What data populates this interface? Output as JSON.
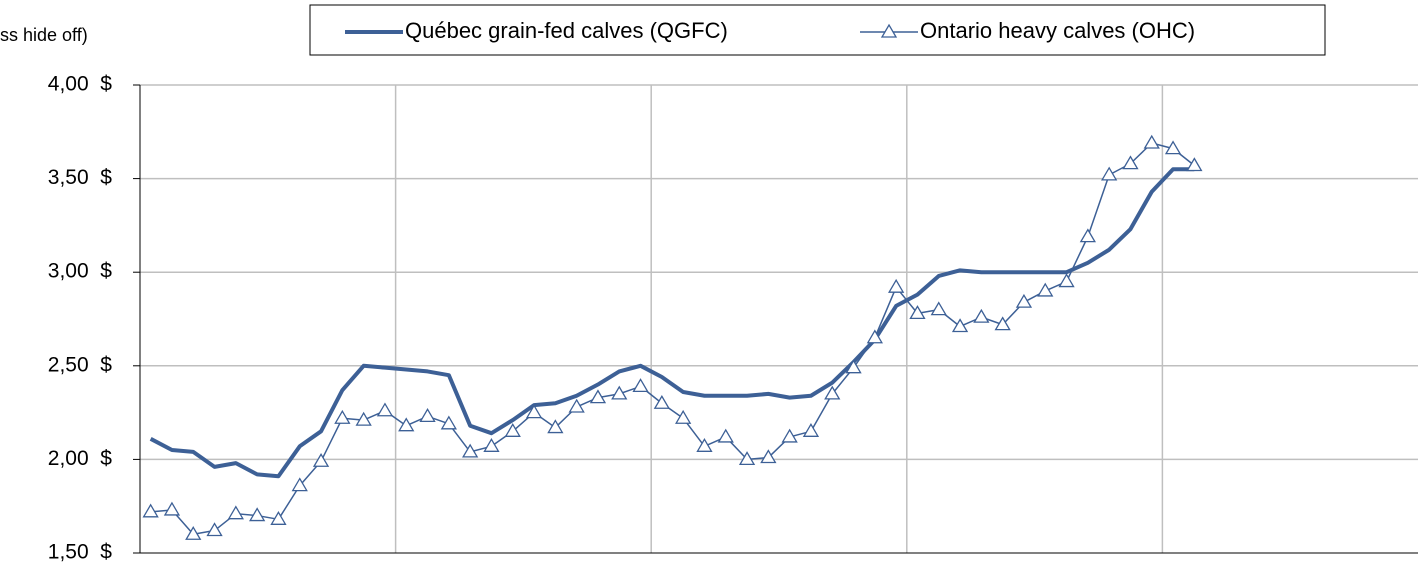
{
  "chart_data": {
    "type": "line",
    "y_axis_label": "ss hide off)",
    "categories": [
      null,
      null,
      null,
      null,
      null,
      null,
      null,
      null,
      null,
      null,
      null,
      null,
      null,
      null,
      null,
      null,
      null,
      null,
      null,
      null,
      null,
      null,
      null,
      null,
      null,
      null,
      null,
      null,
      null,
      null,
      null,
      null,
      null,
      null,
      null,
      null,
      null,
      null,
      null,
      null,
      null,
      null,
      null,
      null,
      null,
      null,
      null,
      null,
      null,
      null,
      null,
      null,
      null,
      null,
      null,
      null,
      null,
      null,
      null,
      null
    ],
    "series": [
      {
        "name": "Québec grain-fed calves (QGFC)",
        "color": "#3d6096",
        "marker": "none",
        "values": [
          2.11,
          2.05,
          2.04,
          1.96,
          1.98,
          1.92,
          1.91,
          2.07,
          2.15,
          2.37,
          2.5,
          2.49,
          2.48,
          2.47,
          2.45,
          2.18,
          2.14,
          2.21,
          2.29,
          2.3,
          2.34,
          2.4,
          2.47,
          2.5,
          2.44,
          2.36,
          2.34,
          2.34,
          2.34,
          2.35,
          2.33,
          2.34,
          2.41,
          2.52,
          2.64,
          2.82,
          2.88,
          2.98,
          3.01,
          3.0,
          3.0,
          3.0,
          3.0,
          3.0,
          3.05,
          3.12,
          3.23,
          3.43,
          3.55,
          3.55,
          null,
          null,
          null,
          null,
          null,
          null,
          null,
          null,
          null,
          null
        ]
      },
      {
        "name": "Ontario heavy calves (OHC)",
        "color": "#3d6096",
        "marker": "triangle",
        "values": [
          1.72,
          1.73,
          1.6,
          1.62,
          1.71,
          1.7,
          1.68,
          1.86,
          1.99,
          2.22,
          2.21,
          2.26,
          2.18,
          2.23,
          2.19,
          2.04,
          2.07,
          2.15,
          2.25,
          2.17,
          2.28,
          2.33,
          2.35,
          2.39,
          2.3,
          2.22,
          2.07,
          2.12,
          2.0,
          2.01,
          2.12,
          2.15,
          2.35,
          2.49,
          2.65,
          2.92,
          2.78,
          2.8,
          2.71,
          2.76,
          2.72,
          2.84,
          2.9,
          2.95,
          3.19,
          3.52,
          3.58,
          3.69,
          3.66,
          3.57,
          null,
          null,
          null,
          null,
          null,
          null,
          null,
          null,
          null,
          null
        ]
      }
    ],
    "ylim": [
      1.5,
      4
    ],
    "yticks": [
      {
        "value": 1.5,
        "label": "1,50  $"
      },
      {
        "value": 2,
        "label": "2,00  $"
      },
      {
        "value": 2.5,
        "label": "2,50  $"
      },
      {
        "value": 3,
        "label": "3,00  $"
      },
      {
        "value": 3.5,
        "label": "3,50  $"
      },
      {
        "value": 4,
        "label": "4,00  $"
      }
    ],
    "grid": true,
    "legend": "top"
  }
}
